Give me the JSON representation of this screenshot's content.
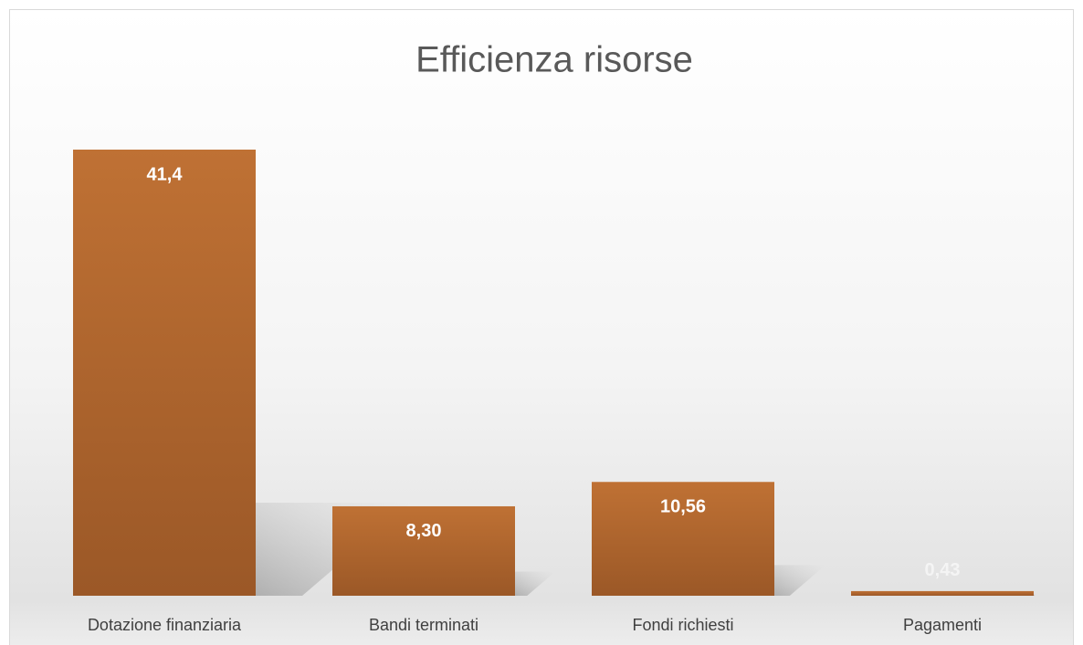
{
  "chart_data": {
    "type": "bar",
    "title": "Efficienza risorse",
    "categories": [
      "Dotazione finanziaria",
      "Bandi terminati",
      "Fondi richiesti",
      "Pagamenti"
    ],
    "values": [
      41.4,
      8.3,
      10.56,
      0.43
    ],
    "value_labels": [
      "41,4",
      "8,30",
      "10,56",
      "0,43"
    ],
    "color": "#b0652f"
  }
}
